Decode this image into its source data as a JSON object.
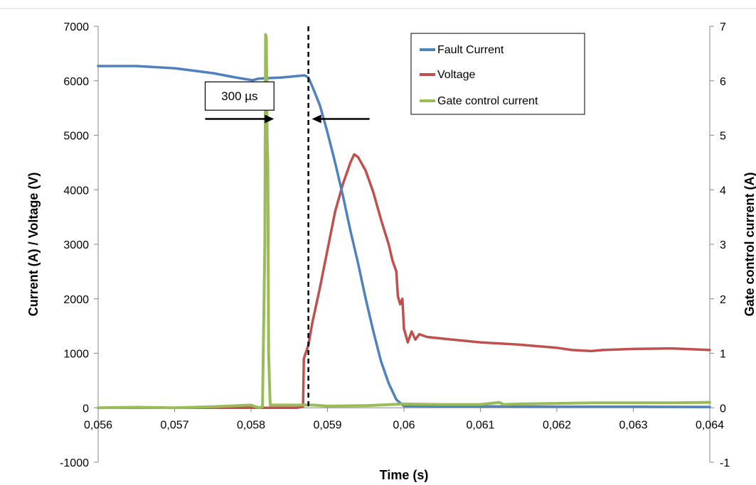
{
  "chart_data": {
    "type": "line",
    "title": "",
    "xlabel": "Time (s)",
    "ylabel": "Current (A) / Voltage (V)",
    "y2label": "Gate control current (A)",
    "xlim": [
      0.056,
      0.064
    ],
    "ylim": [
      -1000,
      7000
    ],
    "y2lim": [
      -1,
      7
    ],
    "xticks": [
      0.056,
      0.057,
      0.058,
      0.059,
      0.06,
      0.061,
      0.062,
      0.063,
      0.064
    ],
    "xtick_labels": [
      "0,056",
      "0,057",
      "0,058",
      "0,059",
      "0,06",
      "0,061",
      "0,062",
      "0,063",
      "0,064"
    ],
    "yticks": [
      -1000,
      0,
      1000,
      2000,
      3000,
      4000,
      5000,
      6000,
      7000
    ],
    "y2ticks": [
      -1,
      0,
      1,
      2,
      3,
      4,
      5,
      6,
      7
    ],
    "grid": false,
    "legend_position": "top-right",
    "series": [
      {
        "name": "Fault Current",
        "color": "#4f81bd",
        "axis": "left",
        "x": [
          0.056,
          0.0565,
          0.057,
          0.0575,
          0.0578,
          0.05802,
          0.0581,
          0.0584,
          0.0587,
          0.05875,
          0.0588,
          0.0589,
          0.059,
          0.0591,
          0.0592,
          0.0593,
          0.0594,
          0.0595,
          0.0596,
          0.0597,
          0.0598,
          0.0599,
          0.06,
          0.0605,
          0.061,
          0.062,
          0.063,
          0.064
        ],
        "y": [
          6270,
          6270,
          6230,
          6140,
          6060,
          6010,
          6040,
          6060,
          6100,
          6060,
          5900,
          5550,
          5050,
          4500,
          3900,
          3250,
          2650,
          2000,
          1400,
          850,
          450,
          150,
          30,
          25,
          25,
          20,
          20,
          15
        ]
      },
      {
        "name": "Voltage",
        "color": "#c0504d",
        "axis": "left",
        "x": [
          0.056,
          0.0586,
          0.05868,
          0.05869,
          0.05875,
          0.0588,
          0.0589,
          0.059,
          0.0591,
          0.0592,
          0.0593,
          0.05935,
          0.0594,
          0.0595,
          0.0596,
          0.0597,
          0.0598,
          0.05985,
          0.0599,
          0.05992,
          0.05995,
          0.05998,
          0.06,
          0.06005,
          0.0601,
          0.06015,
          0.0602,
          0.0603,
          0.0605,
          0.061,
          0.0615,
          0.062,
          0.0622,
          0.06245,
          0.0626,
          0.063,
          0.0635,
          0.064
        ],
        "y": [
          0,
          0,
          20,
          900,
          1150,
          1550,
          2200,
          2900,
          3600,
          4100,
          4500,
          4650,
          4600,
          4350,
          3950,
          3450,
          3000,
          2700,
          2500,
          2050,
          1900,
          2000,
          1450,
          1200,
          1400,
          1250,
          1350,
          1300,
          1270,
          1200,
          1160,
          1100,
          1060,
          1040,
          1060,
          1080,
          1090,
          1060
        ]
      },
      {
        "name": "Gate control current",
        "color": "#9bbb59",
        "axis": "right",
        "x": [
          0.056,
          0.0565,
          0.057,
          0.0575,
          0.058,
          0.0581,
          0.05815,
          0.05818,
          0.05819,
          0.0582,
          0.05821,
          0.05822,
          0.05823,
          0.05825,
          0.0583,
          0.0587,
          0.0588,
          0.059,
          0.0595,
          0.06,
          0.0605,
          0.061,
          0.06125,
          0.0613,
          0.0615,
          0.062,
          0.0625,
          0.063,
          0.0635,
          0.064
        ],
        "y": [
          0.0,
          0.01,
          0.0,
          0.02,
          0.05,
          0.0,
          0.02,
          3.0,
          6.85,
          6.8,
          5.0,
          4.5,
          1.0,
          0.05,
          0.05,
          0.05,
          0.05,
          0.03,
          0.04,
          0.07,
          0.06,
          0.06,
          0.1,
          0.06,
          0.07,
          0.08,
          0.09,
          0.09,
          0.09,
          0.1
        ]
      }
    ],
    "annotations": {
      "interval_label": "300 µs",
      "marker_time": 0.05875,
      "arrow_left_from": 0.0574,
      "arrow_left_to": 0.0583,
      "arrow_right_from": 0.05955,
      "arrow_right_to": 0.05875,
      "arrow_value": 5300,
      "box_x": [
        0.0574,
        0.0583
      ],
      "box_y": [
        5460,
        5980
      ]
    }
  }
}
